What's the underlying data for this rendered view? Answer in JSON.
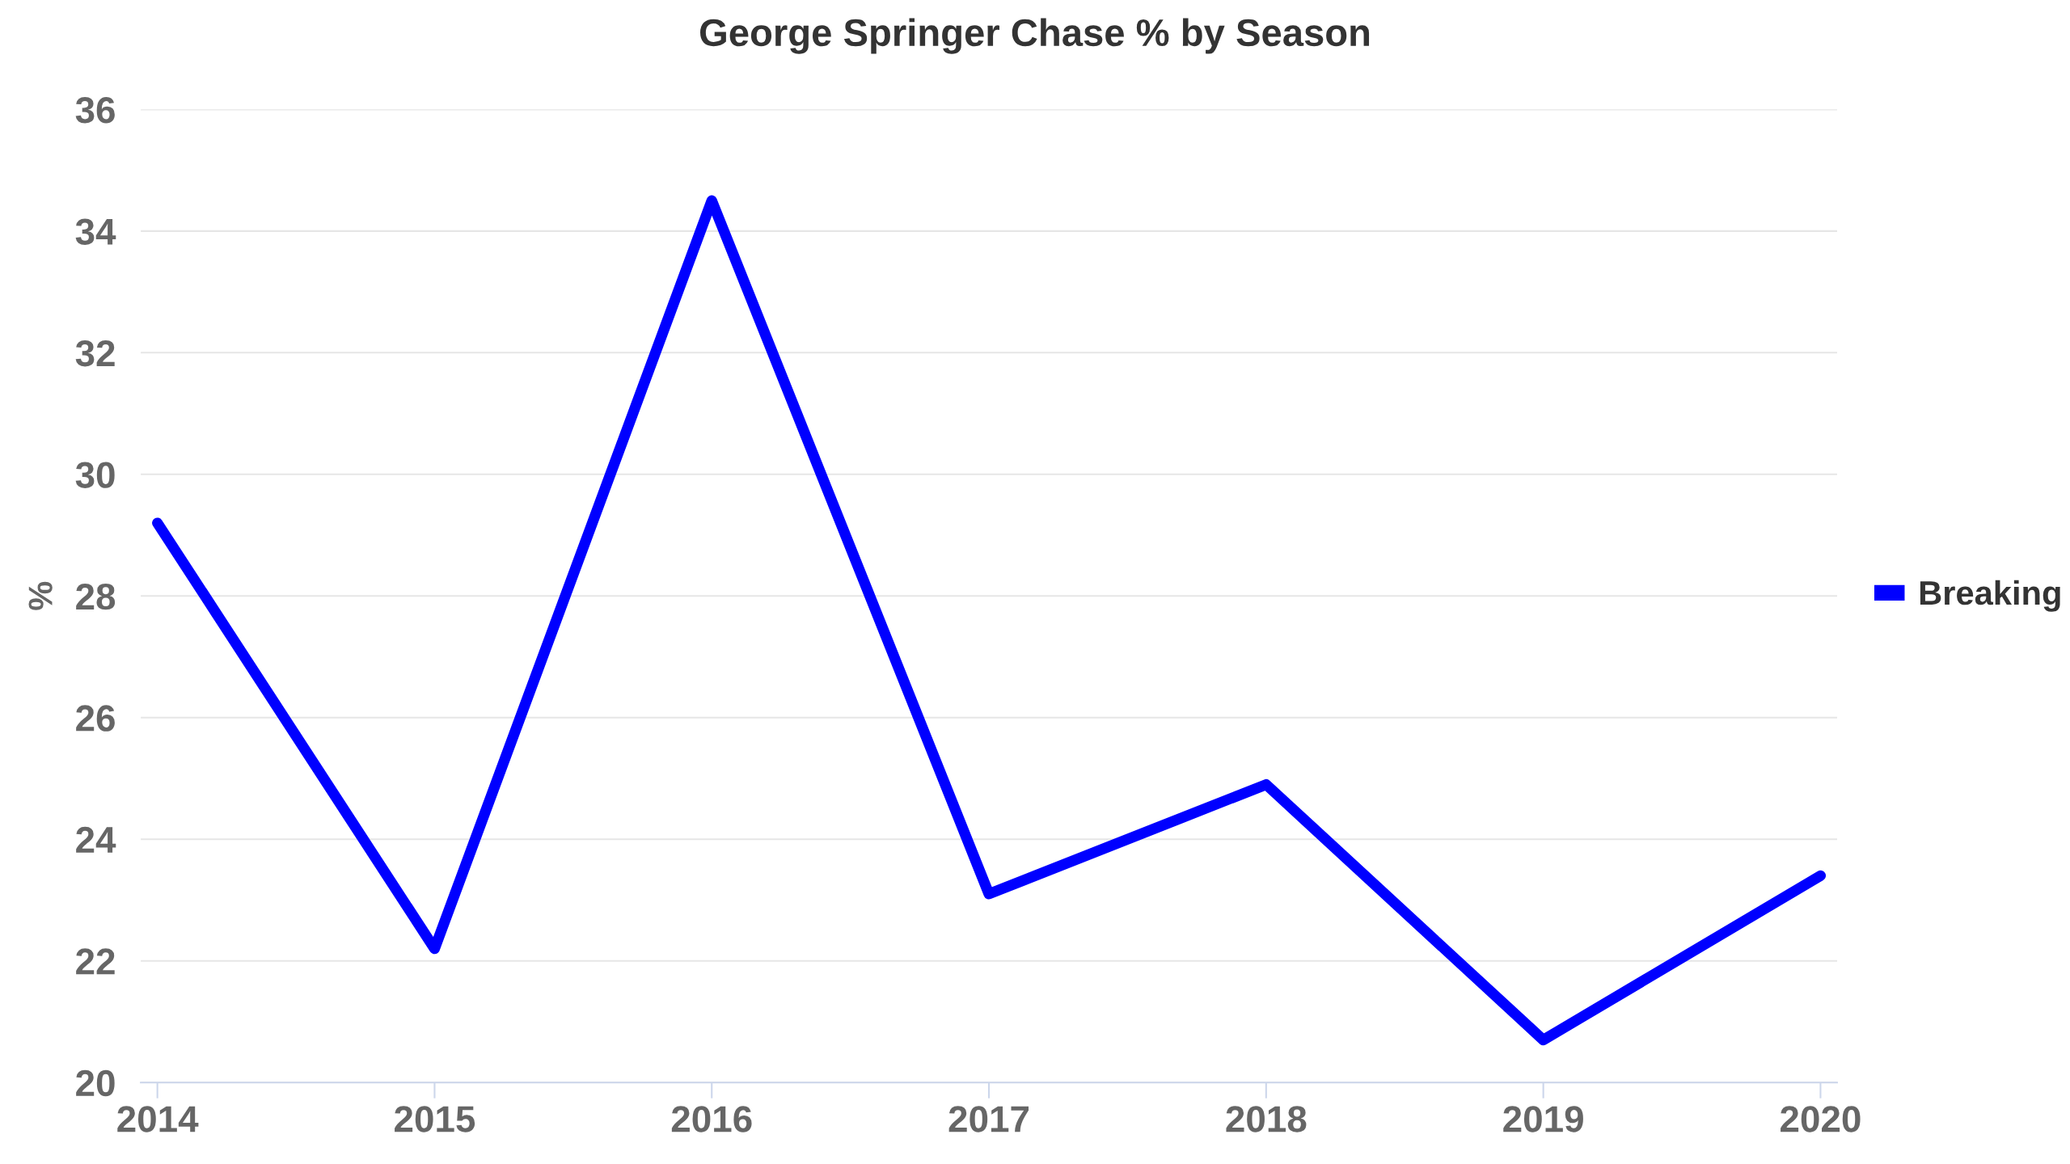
{
  "chart_data": {
    "type": "line",
    "title": "George Springer Chase % by Season",
    "ylabel": "%",
    "x": [
      2014,
      2015,
      2016,
      2017,
      2018,
      2019,
      2020
    ],
    "series": [
      {
        "name": "Breaking",
        "color": "#0000ff",
        "values": [
          29.2,
          22.2,
          34.5,
          23.1,
          24.9,
          20.7,
          23.4
        ]
      }
    ],
    "xlim": [
      2013.94,
      2020.06
    ],
    "xticks": [
      2014,
      2015,
      2016,
      2017,
      2018,
      2019,
      2020
    ],
    "ylim": [
      20,
      36
    ],
    "yticks": [
      20,
      22,
      24,
      26,
      28,
      30,
      32,
      34,
      36
    ],
    "grid": "y",
    "legend": "right"
  }
}
